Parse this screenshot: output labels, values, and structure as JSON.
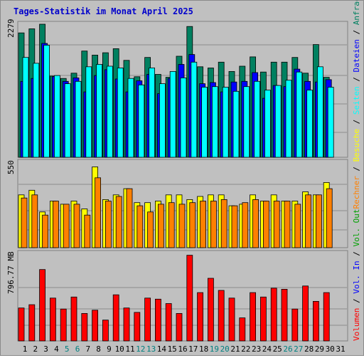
{
  "chart_data": [
    {
      "type": "bar",
      "title": "Tages-Statistik im Monat April 2025",
      "categories": [
        "1",
        "2",
        "3",
        "4",
        "5",
        "6",
        "7",
        "8",
        "9",
        "10",
        "11",
        "12",
        "13",
        "14",
        "15",
        "16",
        "17",
        "18",
        "19",
        "20",
        "21",
        "22",
        "23",
        "24",
        "25",
        "26",
        "27",
        "28",
        "29",
        "30",
        "31"
      ],
      "weekend_days": [
        "5",
        "6",
        "12",
        "13",
        "19",
        "20",
        "26",
        "27"
      ],
      "ymax_label": "2279",
      "ylim": [
        0,
        2279
      ],
      "right_labels": [
        "Anfragen",
        "Dateien",
        "Seiten"
      ],
      "series": [
        {
          "name": "Anfragen",
          "color": "#008060",
          "values": [
            2130,
            2200,
            2330,
            1390,
            1350,
            1440,
            1820,
            1750,
            1790,
            1860,
            1660,
            1380,
            1710,
            1420,
            1370,
            1730,
            2240,
            1550,
            1530,
            1630,
            1470,
            1560,
            1720,
            1460,
            1630,
            1630,
            1710,
            1440,
            1930,
            1370,
            null
          ]
        },
        {
          "name": "Dateien",
          "color": "#0000ff",
          "values": [
            1300,
            1350,
            1950,
            1380,
            1300,
            1360,
            1120,
            1400,
            1500,
            1340,
            1120,
            1310,
            1420,
            1090,
            1350,
            1590,
            1760,
            1260,
            1280,
            1120,
            1290,
            1300,
            1450,
            1010,
            1230,
            1210,
            1510,
            1300,
            1290,
            1330,
            null
          ]
        },
        {
          "name": "Seiten",
          "color": "#00ffff",
          "values": [
            1710,
            1610,
            1920,
            1400,
            1260,
            1300,
            1550,
            1590,
            1560,
            1530,
            1350,
            1240,
            1530,
            1260,
            1470,
            1360,
            1630,
            1200,
            1210,
            1200,
            1130,
            1210,
            1300,
            1150,
            1230,
            1320,
            1460,
            1150,
            1550,
            1200,
            null
          ]
        }
      ]
    },
    {
      "type": "bar",
      "ymax_label": "550",
      "ylim": [
        0,
        550
      ],
      "right_labels": [
        "Besuche",
        "Rechner"
      ],
      "series": [
        {
          "name": "Besuche",
          "color": "#ffff00",
          "values": [
            340,
            370,
            230,
            300,
            280,
            300,
            250,
            520,
            310,
            340,
            380,
            290,
            290,
            300,
            340,
            340,
            310,
            330,
            340,
            340,
            270,
            280,
            340,
            300,
            340,
            300,
            300,
            360,
            340,
            420,
            null
          ]
        },
        {
          "name": "Rechner",
          "color": "#ff8000",
          "values": [
            320,
            340,
            210,
            300,
            280,
            280,
            210,
            450,
            300,
            330,
            380,
            270,
            230,
            280,
            290,
            280,
            290,
            300,
            300,
            310,
            270,
            290,
            310,
            300,
            300,
            300,
            280,
            340,
            340,
            380,
            null
          ]
        }
      ]
    },
    {
      "type": "bar",
      "ymax_label": "796.77 MB",
      "ylim": [
        0,
        796.77
      ],
      "right_labels": [
        "Volumen",
        "Vol. In",
        "Vol. Out"
      ],
      "series": [
        {
          "name": "Volumen",
          "color": "#ff0000",
          "values": [
            300,
            330,
            650,
            390,
            290,
            400,
            250,
            280,
            190,
            420,
            300,
            260,
            390,
            380,
            340,
            250,
            780,
            440,
            570,
            460,
            390,
            210,
            440,
            400,
            480,
            470,
            290,
            500,
            360,
            440,
            null
          ]
        }
      ]
    }
  ]
}
